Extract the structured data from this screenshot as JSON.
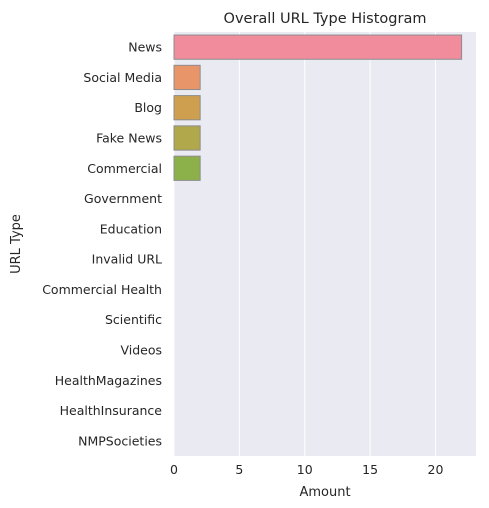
{
  "chart_data": {
    "type": "bar",
    "orientation": "horizontal",
    "title": "Overall URL Type Histogram",
    "xlabel": "Amount",
    "ylabel": "URL Type",
    "categories": [
      "News",
      "Social Media",
      "Blog",
      "Fake News",
      "Commercial",
      "Government",
      "Education",
      "Invalid URL",
      "Commercial Health",
      "Scientific",
      "Videos",
      "HealthMagazines",
      "HealthInsurance",
      "NMPSocieties"
    ],
    "values": [
      22,
      2,
      2,
      2,
      2,
      0,
      0,
      0,
      0,
      0,
      0,
      0,
      0,
      0
    ],
    "colors": [
      "#f08c9c",
      "#e8956a",
      "#cf9f50",
      "#b0a84a",
      "#8cb04a",
      "#57b26e",
      "#48b299",
      "#49acb0",
      "#4ba6c6",
      "#6b9fe0",
      "#a595e8",
      "#d38ae2",
      "#ec86c8",
      "#f38ab0"
    ],
    "xlim": [
      0,
      23.1
    ],
    "xticks": [
      0,
      5,
      10,
      15,
      20
    ],
    "grid": true,
    "background": "#eaeaf2"
  }
}
